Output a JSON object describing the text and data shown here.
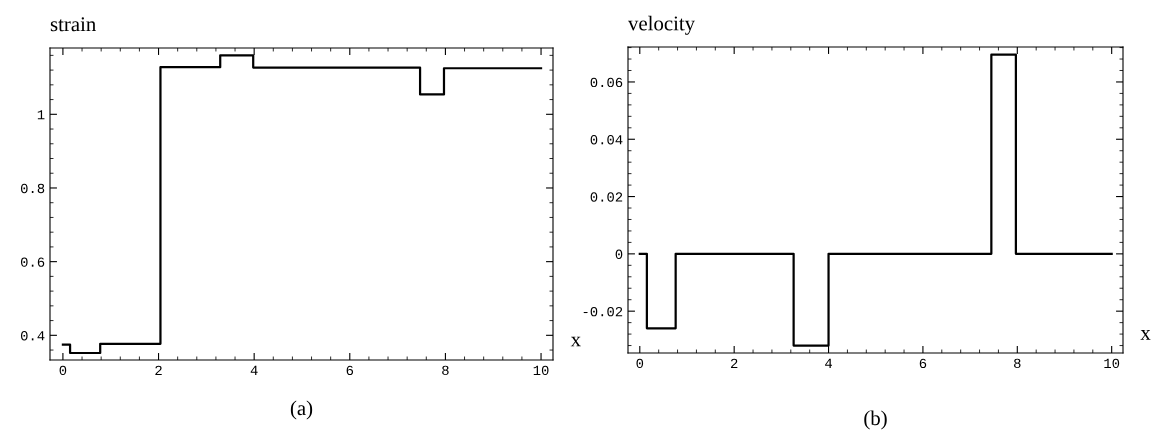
{
  "chart_data": [
    {
      "type": "step",
      "ylabel": "strain",
      "xlabel": "x",
      "annotations": [
        "(a)"
      ],
      "x": [
        0,
        0.15,
        0.78,
        2.04,
        3.29,
        3.98,
        7.47,
        7.97,
        10
      ],
      "series": [
        {
          "color": "#000000",
          "values": [
            0.375,
            0.352,
            0.377,
            1.128,
            1.16,
            1.127,
            1.054,
            1.125,
            1.125
          ]
        }
      ],
      "xlim": [
        -0.27,
        10.25
      ],
      "ylim": [
        0.333,
        1.18
      ],
      "xticks": [
        0,
        2,
        4,
        6,
        8,
        10
      ],
      "yticks": [
        {
          "value": 0.4,
          "label": "0.4"
        },
        {
          "value": 0.6,
          "label": "0.6"
        },
        {
          "value": 0.8,
          "label": "0.8"
        },
        {
          "value": 1,
          "label": "1"
        }
      ],
      "grid": false,
      "line_style": "solid",
      "marker": "none"
    },
    {
      "type": "step",
      "ylabel": "velocity",
      "xlabel": "x",
      "annotations": [
        "(b)"
      ],
      "x": [
        0,
        0.15,
        0.76,
        3.26,
        4.0,
        7.45,
        7.97,
        10
      ],
      "series": [
        {
          "color": "#000000",
          "values": [
            0,
            -0.026,
            0,
            -0.032,
            0,
            0.0695,
            0,
            0
          ]
        }
      ],
      "xlim": [
        -0.25,
        10.24
      ],
      "ylim": [
        -0.0346,
        0.0722
      ],
      "xticks": [
        0,
        2,
        4,
        6,
        8,
        10
      ],
      "yticks": [
        {
          "value": -0.02,
          "label": "-0.02"
        },
        0,
        0.02,
        0.04,
        0.06
      ],
      "grid": false,
      "line_style": "solid",
      "marker": "none"
    }
  ]
}
